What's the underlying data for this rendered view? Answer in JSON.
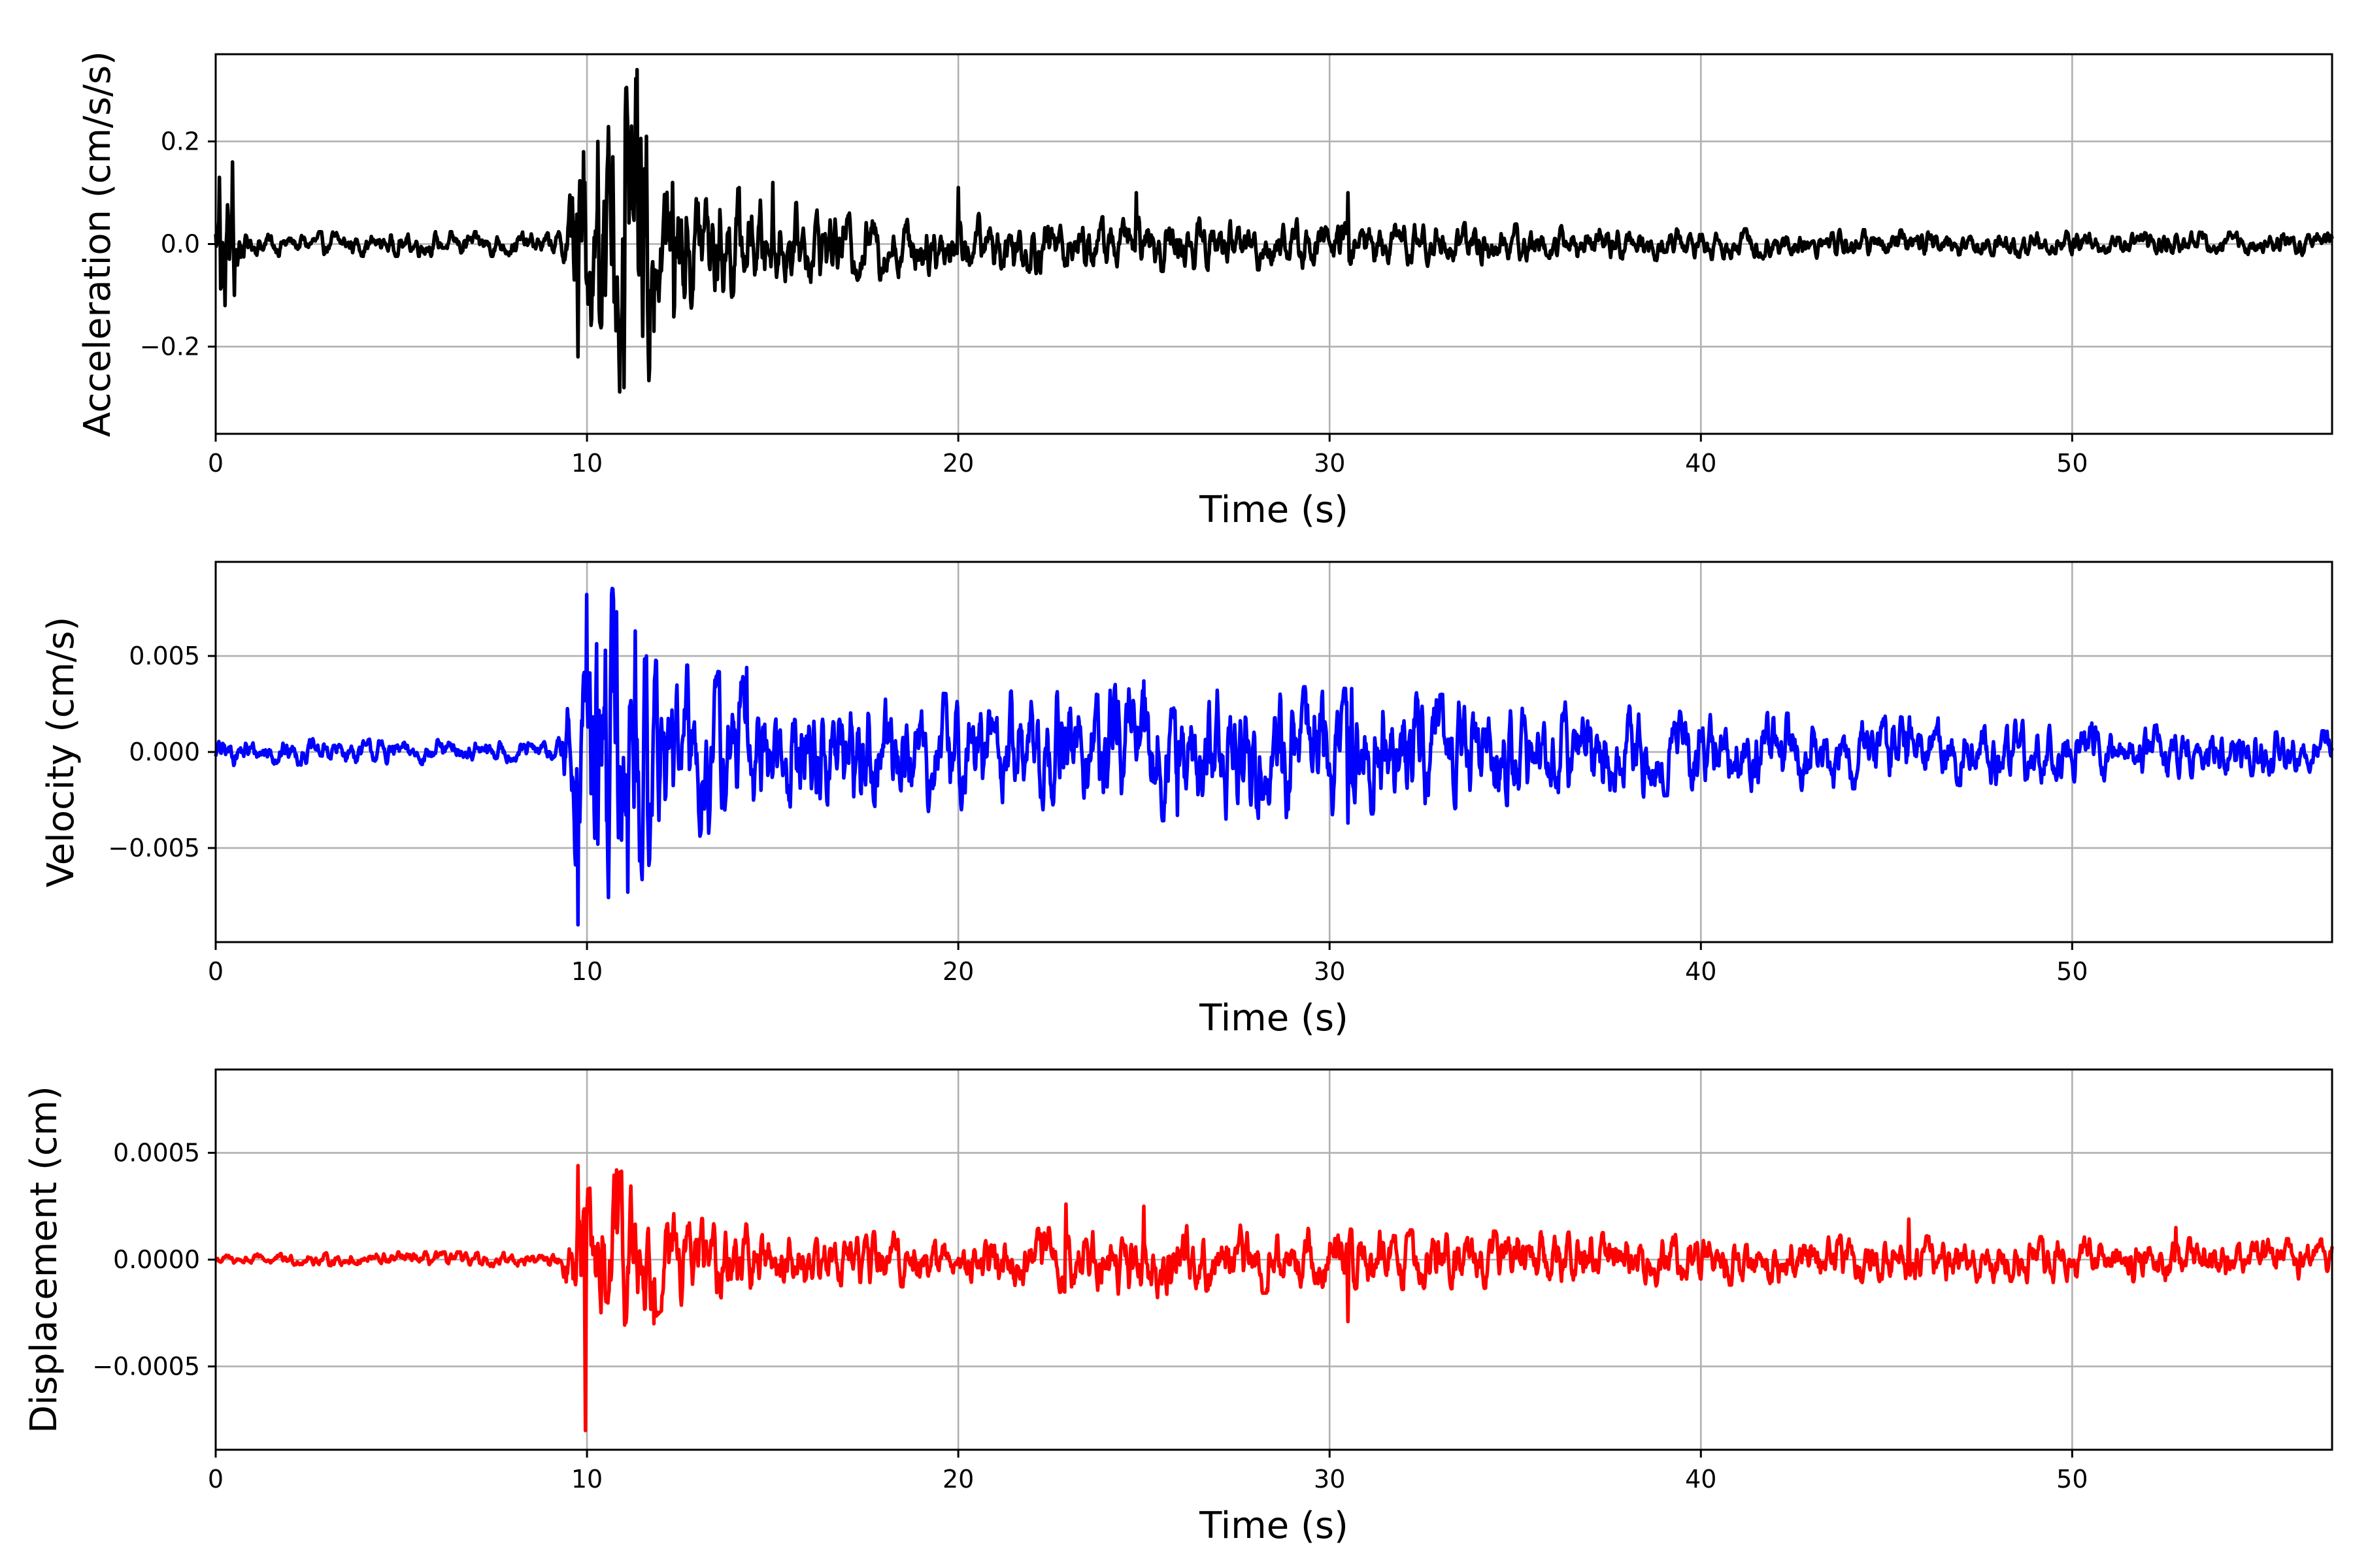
{
  "chart_data": [
    {
      "type": "line",
      "xlabel": "Time (s)",
      "ylabel": "Acceleration (cm/s/s)",
      "xlim": [
        0,
        57
      ],
      "ylim": [
        -0.37,
        0.37
      ],
      "xticks": [
        0,
        10,
        20,
        30,
        40,
        50
      ],
      "xtick_labels": [
        "0",
        "10",
        "20",
        "30",
        "40",
        "50"
      ],
      "yticks": [
        -0.2,
        0.0,
        0.2
      ],
      "ytick_labels": [
        "−0.2",
        "0.0",
        "0.2"
      ],
      "grid": true,
      "series": [
        {
          "color": "#000000",
          "envelope": [
            [
              0,
              0.1
            ],
            [
              0.5,
              0.14
            ],
            [
              0.8,
              0.02
            ],
            [
              9.3,
              0.02
            ],
            [
              9.7,
              0.15
            ],
            [
              11.4,
              0.28
            ],
            [
              12.0,
              0.15
            ],
            [
              15.0,
              0.07
            ],
            [
              20.0,
              0.05
            ],
            [
              30.0,
              0.04
            ],
            [
              40.0,
              0.025
            ],
            [
              57.0,
              0.018
            ]
          ],
          "peaks": [
            [
              0.1,
              0.13
            ],
            [
              0.25,
              -0.12
            ],
            [
              0.45,
              0.16
            ],
            [
              0.5,
              -0.1
            ],
            [
              9.6,
              0.09
            ],
            [
              9.75,
              -0.22
            ],
            [
              9.9,
              0.18
            ],
            [
              10.3,
              0.2
            ],
            [
              10.5,
              -0.1
            ],
            [
              10.7,
              0.17
            ],
            [
              11.0,
              -0.28
            ],
            [
              11.2,
              0.23
            ],
            [
              11.35,
              0.34
            ],
            [
              11.5,
              -0.18
            ],
            [
              11.6,
              0.21
            ],
            [
              11.8,
              -0.17
            ],
            [
              12.3,
              0.12
            ],
            [
              13.0,
              0.08
            ],
            [
              14.1,
              0.11
            ],
            [
              15.0,
              0.12
            ],
            [
              20.0,
              0.11
            ],
            [
              24.8,
              0.1
            ],
            [
              30.5,
              0.1
            ]
          ]
        }
      ]
    },
    {
      "type": "line",
      "xlabel": "Time (s)",
      "ylabel": "Velocity (cm/s)",
      "xlim": [
        0,
        57
      ],
      "ylim": [
        -0.0099,
        0.0099
      ],
      "xticks": [
        0,
        10,
        20,
        30,
        40,
        50
      ],
      "xtick_labels": [
        "0",
        "10",
        "20",
        "30",
        "40",
        "50"
      ],
      "yticks": [
        -0.005,
        0.0,
        0.005
      ],
      "ytick_labels": [
        "−0.005",
        "0.000",
        "0.005"
      ],
      "grid": true,
      "series": [
        {
          "color": "#0000ff",
          "envelope": [
            [
              0,
              0.0006
            ],
            [
              9.2,
              0.0005
            ],
            [
              9.6,
              0.004
            ],
            [
              10.0,
              0.008
            ],
            [
              11.5,
              0.006
            ],
            [
              12.0,
              0.004
            ],
            [
              15.0,
              0.003
            ],
            [
              20.0,
              0.0025
            ],
            [
              25.0,
              0.003
            ],
            [
              30.0,
              0.0028
            ],
            [
              40.0,
              0.0018
            ],
            [
              50.0,
              0.0013
            ],
            [
              57.0,
              0.0009
            ]
          ],
          "peaks": [
            [
              9.75,
              -0.009
            ],
            [
              10.0,
              0.0082
            ],
            [
              10.3,
              -0.0048
            ],
            [
              10.5,
              0.0053
            ],
            [
              10.8,
              0.0073
            ],
            [
              11.1,
              -0.0073
            ],
            [
              11.3,
              0.0063
            ],
            [
              11.6,
              0.005
            ],
            [
              14.3,
              0.0044
            ],
            [
              25.0,
              0.0037
            ],
            [
              25.9,
              -0.0033
            ],
            [
              30.5,
              -0.0037
            ],
            [
              30.6,
              0.0033
            ]
          ]
        }
      ]
    },
    {
      "type": "line",
      "xlabel": "Time (s)",
      "ylabel": "Displacement (cm)",
      "xlim": [
        0,
        57
      ],
      "ylim": [
        -0.00089,
        0.00089
      ],
      "xticks": [
        0,
        10,
        20,
        30,
        40,
        50
      ],
      "xtick_labels": [
        "0",
        "10",
        "20",
        "30",
        "40",
        "50"
      ],
      "yticks": [
        -0.0005,
        0.0,
        0.0005
      ],
      "ytick_labels": [
        "−0.0005",
        "0.0000",
        "0.0005"
      ],
      "grid": true,
      "series": [
        {
          "color": "#ff0000",
          "envelope": [
            [
              0,
              2e-05
            ],
            [
              5.0,
              3e-05
            ],
            [
              9.3,
              3e-05
            ],
            [
              9.7,
              0.00025
            ],
            [
              11.0,
              0.00035
            ],
            [
              12.0,
              0.0002
            ],
            [
              15.0,
              0.00012
            ],
            [
              20.0,
              0.0001
            ],
            [
              25.0,
              0.00015
            ],
            [
              30.0,
              0.00012
            ],
            [
              40.0,
              0.0001
            ],
            [
              57.0,
              8e-05
            ]
          ],
          "peaks": [
            [
              9.75,
              0.00044
            ],
            [
              9.95,
              -0.0008
            ],
            [
              10.8,
              0.00042
            ],
            [
              11.8,
              -0.0003
            ],
            [
              22.9,
              0.00026
            ],
            [
              25.0,
              0.00025
            ],
            [
              30.5,
              -0.00029
            ],
            [
              45.6,
              0.00019
            ],
            [
              52.8,
              0.00015
            ]
          ]
        }
      ]
    }
  ]
}
